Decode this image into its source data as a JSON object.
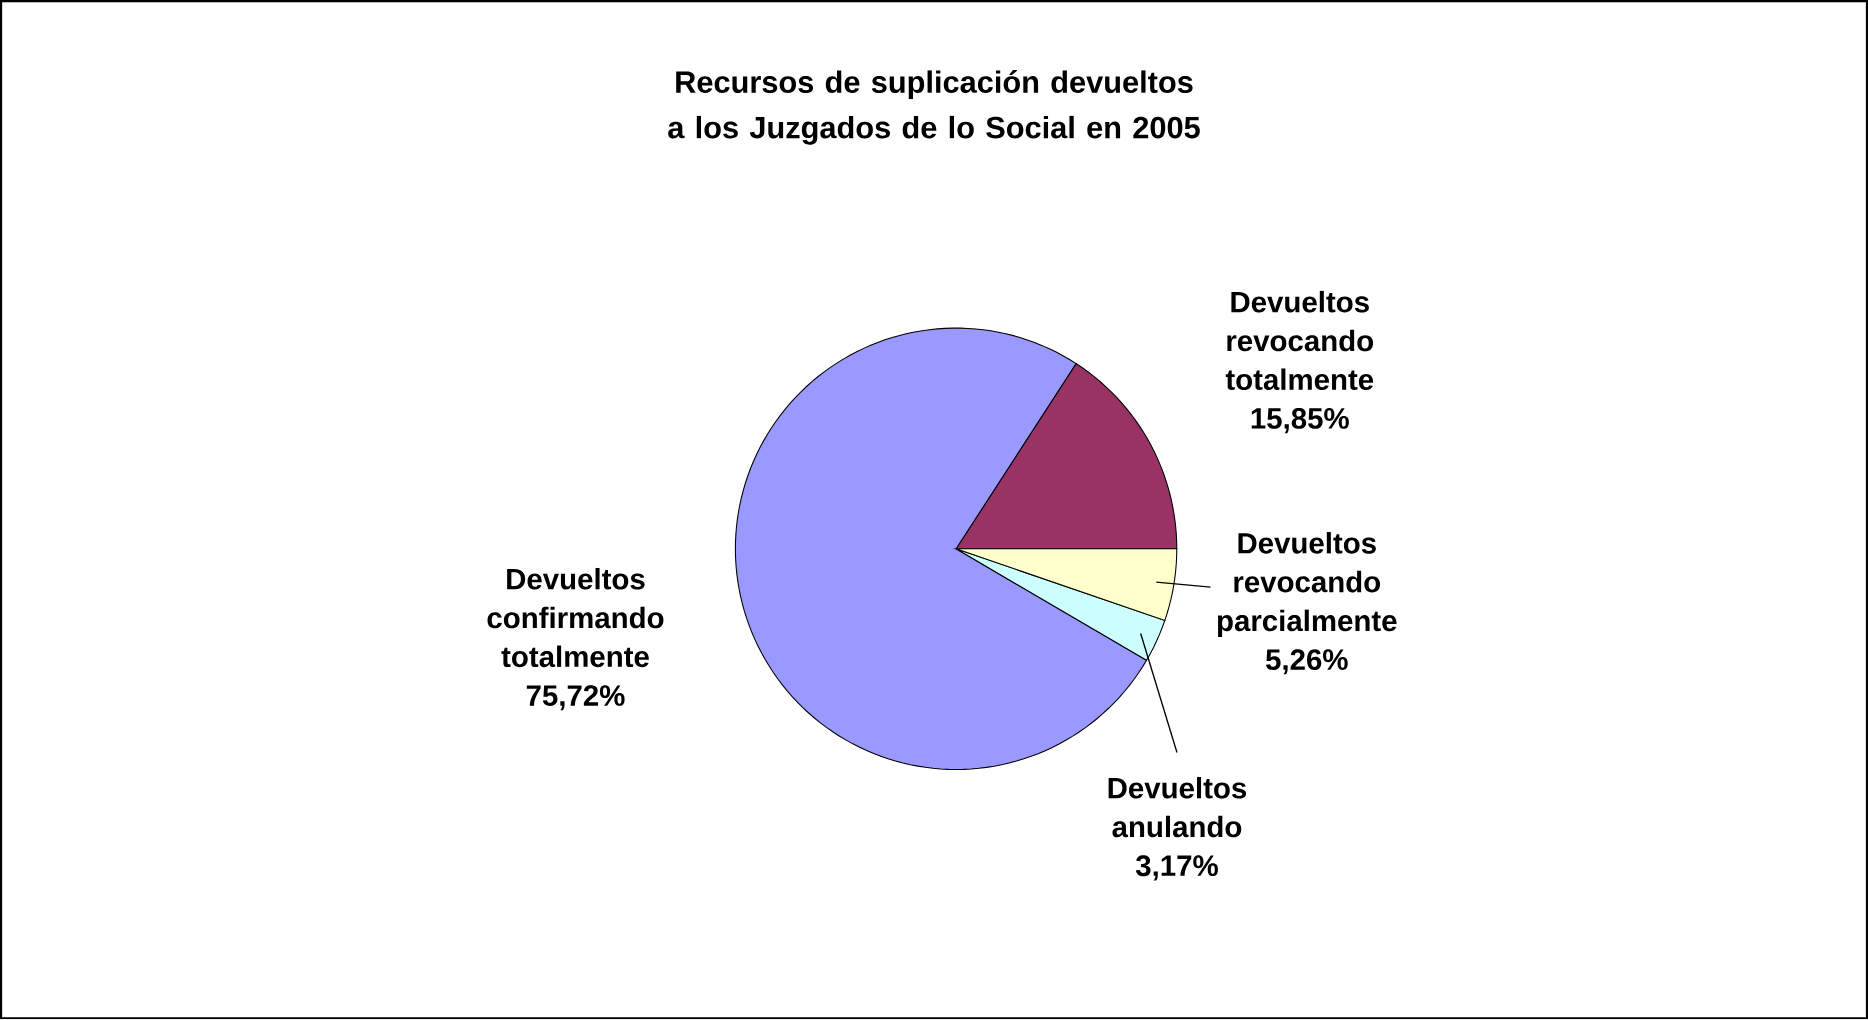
{
  "chart_data": {
    "type": "pie",
    "title": "Recursos de suplicación devueltos a los Juzgados de lo Social en 2005",
    "categories": [
      "Devueltos revocando totalmente",
      "Devueltos confirmando totalmente",
      "Devueltos anulando",
      "Devueltos revocando parcialmente"
    ],
    "values": [
      15.85,
      75.72,
      3.17,
      5.26
    ],
    "colors": [
      "#993366",
      "#9999ff",
      "#ccffff",
      "#ffffcc"
    ],
    "value_labels": [
      "15,85%",
      "75,72%",
      "3,17%",
      "5,26%"
    ],
    "legend": false
  }
}
